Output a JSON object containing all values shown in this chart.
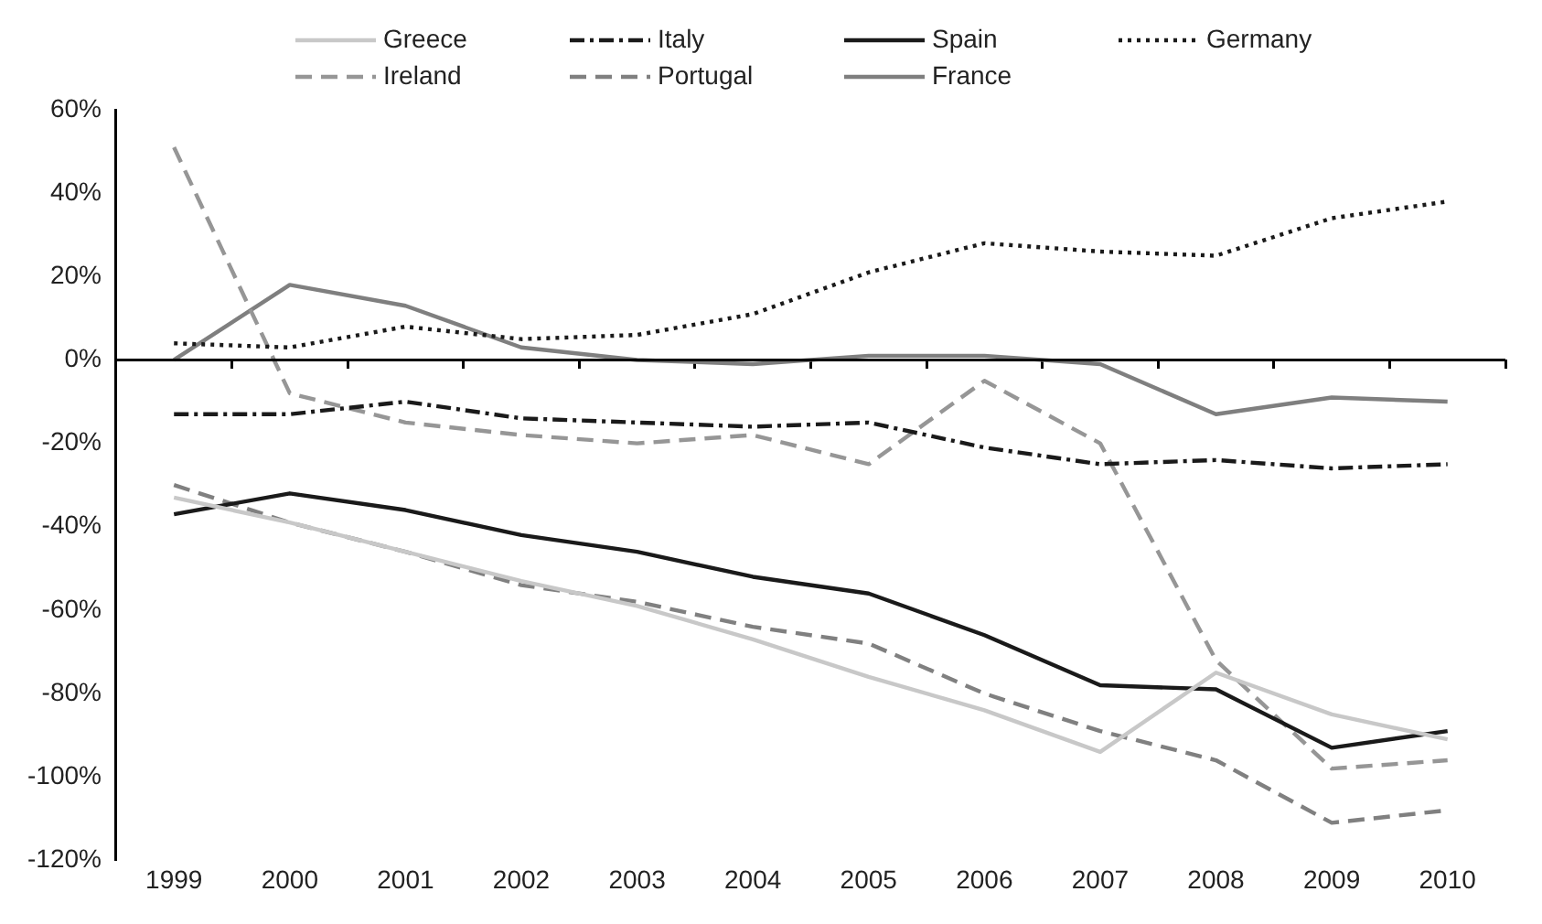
{
  "chart_data": {
    "type": "line",
    "categories": [
      "1999",
      "2000",
      "2001",
      "2002",
      "2003",
      "2004",
      "2005",
      "2006",
      "2007",
      "2008",
      "2009",
      "2010"
    ],
    "series": [
      {
        "name": "Greece",
        "color": "#c8c8c8",
        "line_style": "solid",
        "values": [
          -33,
          -39,
          -46,
          -53,
          -59,
          -67,
          -76,
          -84,
          -94,
          -75,
          -85,
          -91
        ]
      },
      {
        "name": "Italy",
        "color": "#1a1a1a",
        "line_style": "dashdot",
        "values": [
          -13,
          -13,
          -10,
          -14,
          -15,
          -16,
          -15,
          -21,
          -25,
          -24,
          -26,
          -25
        ]
      },
      {
        "name": "Spain",
        "color": "#1a1a1a",
        "line_style": "solid",
        "values": [
          -37,
          -32,
          -36,
          -42,
          -46,
          -52,
          -56,
          -66,
          -78,
          -79,
          -93,
          -89
        ]
      },
      {
        "name": "Germany",
        "color": "#1a1a1a",
        "line_style": "dotted",
        "values": [
          4,
          3,
          8,
          5,
          6,
          11,
          21,
          28,
          26,
          25,
          34,
          38
        ]
      },
      {
        "name": "Ireland",
        "color": "#969696",
        "line_style": "dashed",
        "values": [
          51,
          -8,
          -15,
          -18,
          -20,
          -18,
          -25,
          -5,
          -20,
          -72,
          -98,
          -96
        ]
      },
      {
        "name": "Portugal",
        "color": "#808080",
        "line_style": "dashed",
        "values": [
          -30,
          -39,
          -46,
          -54,
          -58,
          -64,
          -68,
          -80,
          -89,
          -96,
          -111,
          -108
        ]
      },
      {
        "name": "France",
        "color": "#7f7f7f",
        "line_style": "solid",
        "values": [
          0,
          18,
          13,
          3,
          0,
          -1,
          1,
          1,
          -1,
          -13,
          -9,
          -10
        ]
      }
    ],
    "ylim": [
      -120,
      60
    ],
    "yticks": [
      {
        "value": -120,
        "label": "-120%"
      },
      {
        "value": -100,
        "label": "-100%"
      },
      {
        "value": -80,
        "label": "-80%"
      },
      {
        "value": -60,
        "label": "-60%"
      },
      {
        "value": -40,
        "label": "-40%"
      },
      {
        "value": -20,
        "label": "-20%"
      },
      {
        "value": 0,
        "label": "0%"
      },
      {
        "value": 20,
        "label": "20%"
      },
      {
        "value": 40,
        "label": "40%"
      },
      {
        "value": 60,
        "label": "60%"
      }
    ],
    "ref_lines": [
      {
        "axis": "y",
        "value": 0,
        "color": "#000000"
      }
    ],
    "grid": false,
    "legend": "top",
    "marker": "none"
  }
}
